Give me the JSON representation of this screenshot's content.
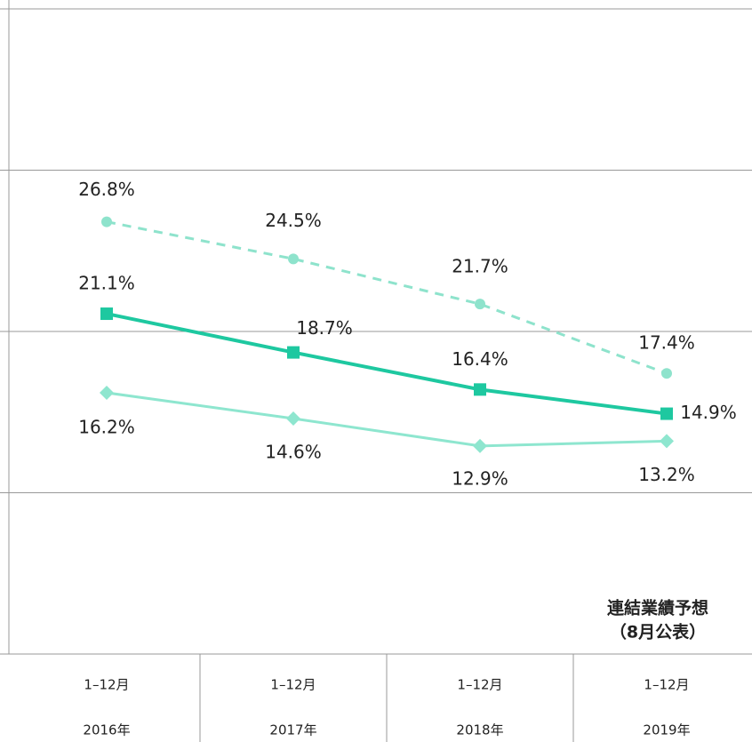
{
  "chart_data": {
    "type": "line",
    "categories": [
      [
        "1–12月",
        "2016年"
      ],
      [
        "1–12月",
        "2017年"
      ],
      [
        "1–12月",
        "2018年"
      ],
      [
        "1–12月",
        "2019年"
      ]
    ],
    "series": [
      {
        "color": "#8ee3cc",
        "dash": true,
        "marker": "circle",
        "values": [
          26.8,
          24.5,
          21.7,
          17.4
        ],
        "value_labels": [
          "26.8%",
          "24.5%",
          "21.7%",
          "17.4%"
        ]
      },
      {
        "color": "#1ec8a0",
        "dash": false,
        "marker": "square",
        "values": [
          21.1,
          18.7,
          16.4,
          14.9
        ],
        "value_labels": [
          "21.1%",
          "18.7%",
          "16.4%",
          "14.9%"
        ]
      },
      {
        "color": "#8ee6cf",
        "dash": false,
        "marker": "diamond",
        "values": [
          16.2,
          14.6,
          12.9,
          13.2
        ],
        "value_labels": [
          "16.2%",
          "14.6%",
          "12.9%",
          "13.2%"
        ]
      }
    ],
    "ylim": [
      0,
      40
    ],
    "yticks": [
      0,
      10,
      20,
      30,
      40
    ],
    "grid": true,
    "annotation": [
      "連結業績予想",
      "（8月公表）"
    ]
  }
}
